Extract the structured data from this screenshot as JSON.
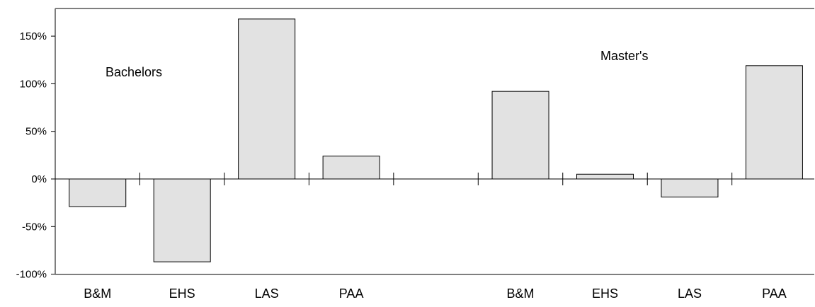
{
  "chart_data": {
    "type": "bar",
    "categories": [
      "B&M",
      "EHS",
      "LAS",
      "PAA",
      "",
      "B&M",
      "EHS",
      "LAS",
      "PAA"
    ],
    "values": [
      -29,
      -87,
      168,
      24,
      null,
      92,
      5,
      -19,
      119
    ],
    "group_labels": [
      "Bachelors",
      "Master's"
    ],
    "y_tick_labels": [
      "150%",
      "100%",
      "50%",
      "0%",
      "-50%",
      "-100%"
    ],
    "y_ticks": [
      150,
      100,
      50,
      0,
      -50,
      -100
    ],
    "ylim": [
      -100,
      180
    ],
    "title": "",
    "xlabel": "",
    "ylabel": "",
    "grid": false,
    "legend": "none",
    "bar_color": "#e2e2e2",
    "edge_color": "#000000"
  }
}
